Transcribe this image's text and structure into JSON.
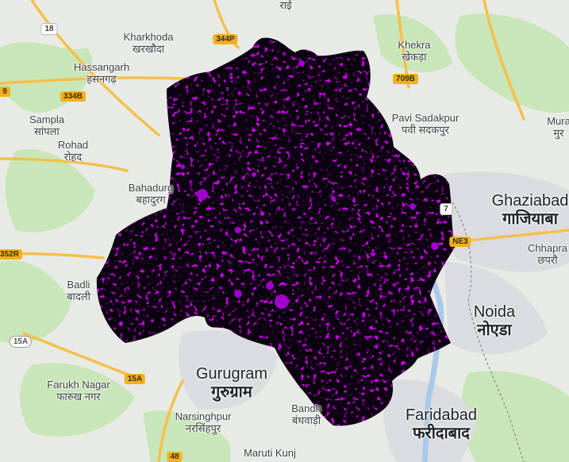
{
  "map": {
    "overlay_color": "#a000d0",
    "base_colors": {
      "land": "#e8eae6",
      "green": "#c8e6b7",
      "urban": "#dadce0",
      "major_road": "#f5c04a",
      "water": "#aac9ea"
    },
    "places": [
      {
        "id": "khekra-top-partial",
        "en": "राई",
        "hi": ""
      },
      {
        "id": "kharkhoda",
        "en": "Kharkhoda",
        "hi": "खरखौदा"
      },
      {
        "id": "khekra",
        "en": "Khekra",
        "hi": "खेकड़ा"
      },
      {
        "id": "hassangarh",
        "en": "Hassangarh",
        "hi": "हसनगढ़"
      },
      {
        "id": "pavi-sadakpur",
        "en": "Pavi Sadakpur",
        "hi": "पवी सदकपुर"
      },
      {
        "id": "sampla",
        "en": "Sampla",
        "hi": "सांपला"
      },
      {
        "id": "rohad",
        "en": "Rohad",
        "hi": "रोहद"
      },
      {
        "id": "muradnagar-partial",
        "en": "Mura",
        "hi": "मुर"
      },
      {
        "id": "bahadurgarh",
        "en": "Bahadurg",
        "hi": "बहादुरग"
      },
      {
        "id": "ghaziabad",
        "en": "Ghaziabad",
        "hi": "गाजियाबा"
      },
      {
        "id": "chhapraula",
        "en": "Chhapra",
        "hi": "छपरौ"
      },
      {
        "id": "badli",
        "en": "Badli",
        "hi": "बादली"
      },
      {
        "id": "noida",
        "en": "Noida",
        "hi": "नोएडा"
      },
      {
        "id": "gurugram",
        "en": "Gurugram",
        "hi": "गुरुग्राम"
      },
      {
        "id": "farukh-nagar",
        "en": "Farukh Nagar",
        "hi": "फारुख नगर"
      },
      {
        "id": "bandhwari",
        "en": "Bandh",
        "hi": "बंधवाड़ी"
      },
      {
        "id": "faridabad",
        "en": "Faridabad",
        "hi": "फरीदाबाद"
      },
      {
        "id": "narsinghpur",
        "en": "Narsinghpur",
        "hi": "नरसिंहपुर"
      },
      {
        "id": "maruti-kunj",
        "en": "Maruti Kunj",
        "hi": ""
      }
    ],
    "shields": [
      {
        "id": "r18",
        "text": "18"
      },
      {
        "id": "r344p",
        "text": "344P"
      },
      {
        "id": "r709b",
        "text": "709B"
      },
      {
        "id": "r9",
        "text": "9"
      },
      {
        "id": "r334b",
        "text": "334B"
      },
      {
        "id": "r352r",
        "text": "352R"
      },
      {
        "id": "rne3",
        "text": "NE3"
      },
      {
        "id": "r15a-a",
        "text": "15A"
      },
      {
        "id": "r15a-b",
        "text": "15A"
      },
      {
        "id": "r48",
        "text": "48"
      },
      {
        "id": "r7",
        "text": "7"
      }
    ]
  }
}
